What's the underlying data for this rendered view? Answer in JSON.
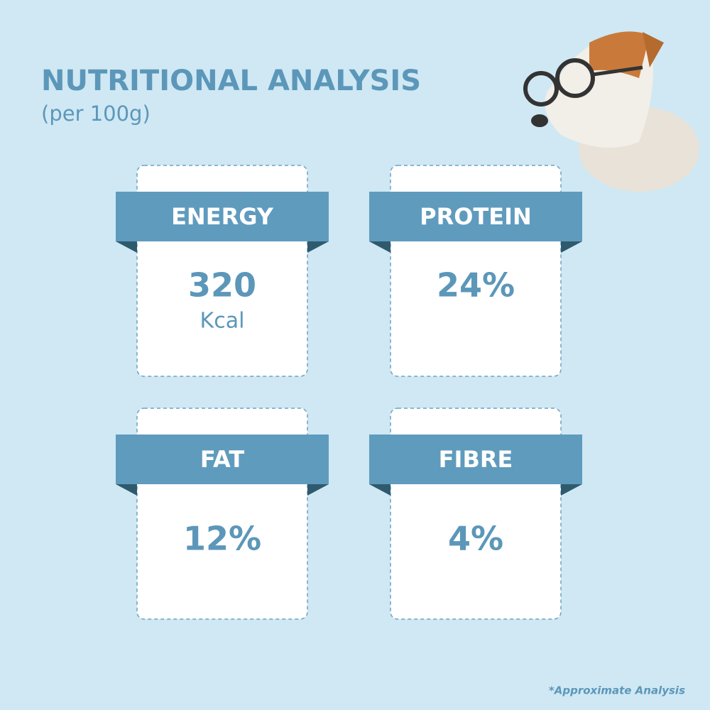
{
  "header": {
    "title": "NUTRITIONAL ANALYSIS",
    "subtitle": "(per 100g)"
  },
  "cards": [
    {
      "label": "ENERGY",
      "value": "320",
      "unit": "Kcal"
    },
    {
      "label": "PROTEIN",
      "value": "24%"
    },
    {
      "label": "FAT",
      "value": "12%"
    },
    {
      "label": "FIBRE",
      "value": "4%"
    }
  ],
  "footnote": "*Approximate Analysis"
}
